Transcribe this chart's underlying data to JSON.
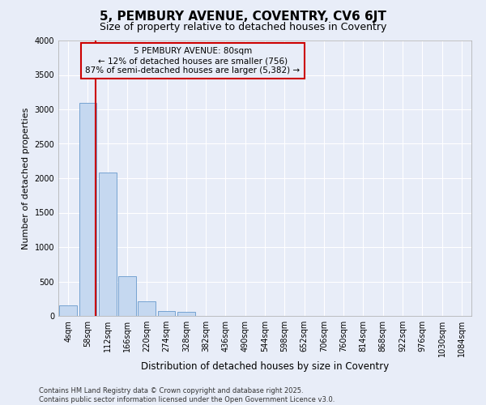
{
  "title1": "5, PEMBURY AVENUE, COVENTRY, CV6 6JT",
  "title2": "Size of property relative to detached houses in Coventry",
  "xlabel": "Distribution of detached houses by size in Coventry",
  "ylabel": "Number of detached properties",
  "bar_labels": [
    "4sqm",
    "58sqm",
    "112sqm",
    "166sqm",
    "220sqm",
    "274sqm",
    "328sqm",
    "382sqm",
    "436sqm",
    "490sqm",
    "544sqm",
    "598sqm",
    "652sqm",
    "706sqm",
    "760sqm",
    "814sqm",
    "868sqm",
    "922sqm",
    "976sqm",
    "1030sqm",
    "1084sqm"
  ],
  "bar_values": [
    150,
    3100,
    2080,
    580,
    215,
    70,
    55,
    0,
    0,
    0,
    0,
    0,
    0,
    0,
    0,
    0,
    0,
    0,
    0,
    0,
    0
  ],
  "bar_color": "#c5d8f0",
  "bar_edge_color": "#6699cc",
  "vline_color": "#cc0000",
  "vline_x": 1.4,
  "annotation_text": "5 PEMBURY AVENUE: 80sqm\n← 12% of detached houses are smaller (756)\n87% of semi-detached houses are larger (5,382) →",
  "annotation_box_color": "#cc0000",
  "ylim": [
    0,
    4000
  ],
  "yticks": [
    0,
    500,
    1000,
    1500,
    2000,
    2500,
    3000,
    3500,
    4000
  ],
  "bg_color": "#e8edf8",
  "grid_color": "#ffffff",
  "footer": "Contains HM Land Registry data © Crown copyright and database right 2025.\nContains public sector information licensed under the Open Government Licence v3.0.",
  "title1_fontsize": 11,
  "title2_fontsize": 9,
  "xlabel_fontsize": 8.5,
  "ylabel_fontsize": 8,
  "tick_fontsize": 7,
  "annot_fontsize": 7.5,
  "footer_fontsize": 6
}
